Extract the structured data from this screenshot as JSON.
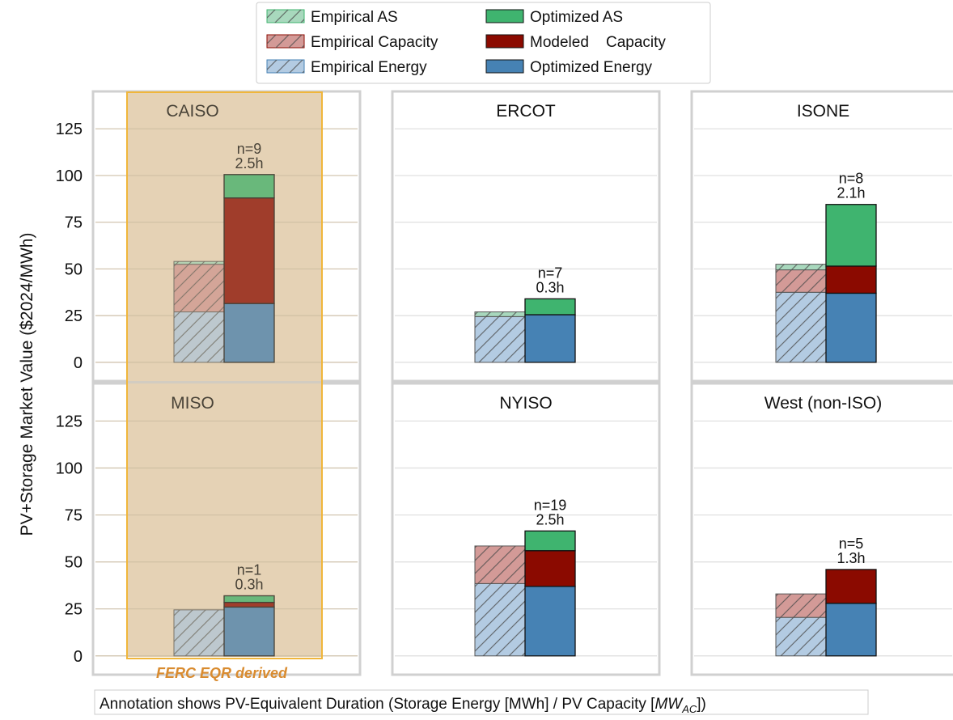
{
  "legend": {
    "empirical_as": "Empirical AS",
    "empirical_capacity": "Empirical Capacity",
    "empirical_energy": "Empirical Energy",
    "optimized_as": "Optimized AS",
    "modeled_capacity": "Modeled    Capacity",
    "optimized_energy": "Optimized Energy"
  },
  "ylabel": "PV+Storage Market Value ($2024/MWh)",
  "highlight_label": "FERC EQR derived",
  "footnote": "Annotation shows PV-Equivalent Duration (Storage Energy [MWh] / PV Capacity [",
  "footnote_unit_main": "MW",
  "footnote_unit_sub": "AC",
  "footnote_end": "])",
  "colors": {
    "empirical_as": "#a8d8bd",
    "empirical_capacity": "#d39a97",
    "empirical_energy": "#b3cbe2",
    "optimized_as": "#3fb46f",
    "modeled_capacity": "#8b0a00",
    "optimized_energy": "#4682b4",
    "highlight_fill": "#ead9bf",
    "highlight_border": "#f0b63b",
    "highlight_text": "#d98b2f"
  },
  "chart_data": {
    "type": "bar",
    "stacked": true,
    "ylim": [
      -10,
      145
    ],
    "yticks": [
      "0",
      "25",
      "50",
      "75",
      "100",
      "125"
    ],
    "ytick_values": [
      0,
      25,
      50,
      75,
      100,
      125
    ],
    "grid": true,
    "legend_position": "top-center",
    "panels": [
      {
        "title": "CAISO",
        "n": "n=9",
        "duration": "2.5h",
        "empirical": {
          "energy": 27,
          "capacity": 25.5,
          "as": 1.5
        },
        "optimized": {
          "energy": 31.5,
          "capacity": 56.5,
          "as": 12.5
        }
      },
      {
        "title": "ERCOT",
        "n": "n=7",
        "duration": "0.3h",
        "empirical": {
          "energy": 24.5,
          "capacity": 0,
          "as": 2.5
        },
        "optimized": {
          "energy": 25.5,
          "capacity": 0,
          "as": 8.5
        }
      },
      {
        "title": "ISONE",
        "n": "n=8",
        "duration": "2.1h",
        "empirical": {
          "energy": 37.5,
          "capacity": 12,
          "as": 3
        },
        "optimized": {
          "energy": 37,
          "capacity": 14.5,
          "as": 33
        }
      },
      {
        "title": "MISO",
        "n": "n=1",
        "duration": "0.3h",
        "empirical": {
          "energy": 24.5,
          "capacity": 0,
          "as": 0
        },
        "optimized": {
          "energy": 26,
          "capacity": 2.5,
          "as": 3.5
        }
      },
      {
        "title": "NYISO",
        "n": "n=19",
        "duration": "2.5h",
        "empirical": {
          "energy": 38.5,
          "capacity": 20,
          "as": 0
        },
        "optimized": {
          "energy": 37,
          "capacity": 19,
          "as": 10.5
        }
      },
      {
        "title": "West (non-ISO)",
        "n": "n=5",
        "duration": "1.3h",
        "empirical": {
          "energy": 20.5,
          "capacity": 12.5,
          "as": 0
        },
        "optimized": {
          "energy": 28,
          "capacity": 18,
          "as": 0
        }
      }
    ]
  }
}
